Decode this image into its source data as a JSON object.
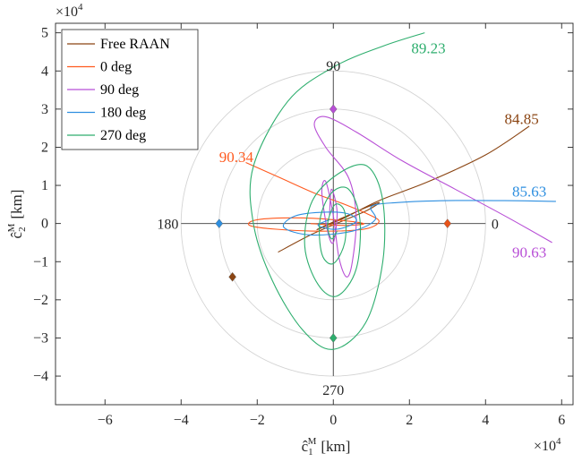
{
  "chart_data": {
    "type": "line",
    "title": "",
    "xlabel": "ĉ1M [km]",
    "ylabel": "ĉ2M [km]",
    "xlabel_parts": {
      "base": "ĉ",
      "sub": "1",
      "sup": "M",
      "unit": "[km]"
    },
    "ylabel_parts": {
      "base": "ĉ",
      "sub": "2",
      "sup": "M",
      "unit": "[km]"
    },
    "x_exponent": "×10^4",
    "y_exponent": "×10^4",
    "xlim": [
      -7.3,
      6.3
    ],
    "ylim": [
      -4.75,
      5.25
    ],
    "xticks": [
      -6,
      -4,
      -2,
      0,
      2,
      4,
      6
    ],
    "yticks": [
      -4,
      -3,
      -2,
      -1,
      0,
      1,
      2,
      3,
      4,
      5
    ],
    "grid": false,
    "legend_position": "top-left",
    "units_note": "axis values in units of 10^4 km",
    "series": [
      {
        "name": "Free RAAN",
        "color": "#8B4513",
        "points": [
          [
            -1.45,
            -0.75
          ],
          [
            -0.6,
            -0.3
          ],
          [
            0.2,
            0.05
          ],
          [
            0.9,
            0.35
          ],
          [
            1.2,
            0.55
          ],
          [
            0.7,
            0.35
          ],
          [
            -0.2,
            -0.05
          ],
          [
            -0.4,
            -0.15
          ],
          [
            0.3,
            0.15
          ],
          [
            1.2,
            0.6
          ],
          [
            2.5,
            1.1
          ],
          [
            4.0,
            1.8
          ],
          [
            5.15,
            2.55
          ]
        ],
        "terminal_label": "84.85"
      },
      {
        "name": "0 deg",
        "color": "#FF5A1F",
        "points": [
          [
            -2.3,
            1.6
          ],
          [
            -1.4,
            1.2
          ],
          [
            -0.5,
            0.8
          ],
          [
            0.3,
            0.5
          ],
          [
            0.9,
            0.25
          ],
          [
            1.2,
            0.05
          ],
          [
            0.8,
            -0.15
          ],
          [
            -0.3,
            -0.2
          ],
          [
            -1.5,
            -0.15
          ],
          [
            -2.2,
            -0.05
          ],
          [
            -2.0,
            0.1
          ],
          [
            -1.0,
            0.15
          ],
          [
            0.0,
            0.1
          ],
          [
            0.8,
            0.0
          ],
          [
            0.3,
            -0.05
          ],
          [
            -0.6,
            0.0
          ]
        ],
        "terminal_label": "90.34"
      },
      {
        "name": "90 deg",
        "color": "#B84FD6",
        "points": [
          [
            5.75,
            -0.5
          ],
          [
            4.6,
            0.15
          ],
          [
            3.2,
            0.9
          ],
          [
            1.8,
            1.65
          ],
          [
            0.6,
            2.4
          ],
          [
            -0.2,
            2.8
          ],
          [
            -0.5,
            2.6
          ],
          [
            -0.2,
            2.0
          ],
          [
            0.4,
            1.2
          ],
          [
            0.6,
            0.2
          ],
          [
            0.5,
            -1.0
          ],
          [
            0.35,
            -1.4
          ],
          [
            0.15,
            -0.9
          ],
          [
            0.0,
            0.2
          ],
          [
            -0.2,
            1.1
          ],
          [
            -0.3,
            0.8
          ],
          [
            -0.15,
            -0.2
          ],
          [
            0.0,
            -0.5
          ],
          [
            0.1,
            0.3
          ],
          [
            -0.05,
            0.9
          ],
          [
            -0.1,
            0.2
          ]
        ],
        "terminal_label": "90.63"
      },
      {
        "name": "180 deg",
        "color": "#2E8FE0",
        "points": [
          [
            5.85,
            0.58
          ],
          [
            4.5,
            0.6
          ],
          [
            3.0,
            0.6
          ],
          [
            1.7,
            0.55
          ],
          [
            1.0,
            0.45
          ],
          [
            1.1,
            0.1
          ],
          [
            0.5,
            -0.2
          ],
          [
            -0.6,
            -0.3
          ],
          [
            -1.3,
            -0.1
          ],
          [
            -1.0,
            0.2
          ],
          [
            -0.2,
            0.3
          ],
          [
            0.4,
            0.25
          ],
          [
            0.6,
            0.05
          ],
          [
            0.1,
            -0.15
          ],
          [
            -0.4,
            -0.05
          ],
          [
            -0.1,
            0.1
          ]
        ],
        "terminal_label": "85.63"
      },
      {
        "name": "270 deg",
        "color": "#2EAE6E",
        "points": [
          [
            2.4,
            5.0
          ],
          [
            1.3,
            4.65
          ],
          [
            0.0,
            4.1
          ],
          [
            -1.2,
            3.2
          ],
          [
            -2.1,
            1.5
          ],
          [
            -2.1,
            0.0
          ],
          [
            -1.6,
            -1.5
          ],
          [
            -0.8,
            -2.8
          ],
          [
            0.0,
            -3.3
          ],
          [
            0.85,
            -2.6
          ],
          [
            1.3,
            -1.0
          ],
          [
            1.3,
            0.6
          ],
          [
            0.9,
            1.5
          ],
          [
            0.2,
            1.35
          ],
          [
            -0.55,
            0.6
          ],
          [
            -0.75,
            -0.6
          ],
          [
            -0.4,
            -1.6
          ],
          [
            0.1,
            -1.9
          ],
          [
            0.6,
            -1.2
          ],
          [
            0.7,
            0.1
          ],
          [
            0.4,
            0.9
          ],
          [
            -0.05,
            0.8
          ],
          [
            -0.35,
            0.1
          ],
          [
            -0.3,
            -0.8
          ],
          [
            0.0,
            -1.05
          ],
          [
            0.3,
            -0.5
          ],
          [
            0.3,
            0.3
          ],
          [
            0.05,
            0.5
          ],
          [
            -0.15,
            0.0
          ],
          [
            -0.05,
            -0.4
          ],
          [
            0.1,
            -0.2
          ]
        ],
        "terminal_label": "89.23"
      }
    ],
    "markers": [
      {
        "x": 3.0,
        "y": 0.0,
        "color": "#E8541A"
      },
      {
        "x": 0.0,
        "y": 3.0,
        "color": "#B84FD6"
      },
      {
        "x": -3.0,
        "y": 0.0,
        "color": "#2E8FE0"
      },
      {
        "x": 0.0,
        "y": -3.0,
        "color": "#2EAE6E"
      },
      {
        "x": -2.65,
        "y": -1.4,
        "color": "#8B4513"
      }
    ],
    "reference_circles": [
      2.0,
      3.0,
      4.0
    ],
    "reference_axes": true,
    "angle_labels": [
      {
        "text": "0",
        "x": 4.25,
        "y": 0.0
      },
      {
        "text": "90",
        "x": 0.0,
        "y": 4.15
      },
      {
        "text": "180",
        "x": -4.35,
        "y": 0.0
      },
      {
        "text": "270",
        "x": 0.0,
        "y": -4.35
      }
    ],
    "series_label_positions": [
      {
        "text": "84.85",
        "x": 4.95,
        "y": 2.75
      },
      {
        "text": "90.34",
        "x": -2.55,
        "y": 1.75
      },
      {
        "text": "90.63",
        "x": 5.15,
        "y": -0.75
      },
      {
        "text": "85.63",
        "x": 5.15,
        "y": 0.85
      },
      {
        "text": "89.23",
        "x": 2.5,
        "y": 4.6
      }
    ]
  }
}
